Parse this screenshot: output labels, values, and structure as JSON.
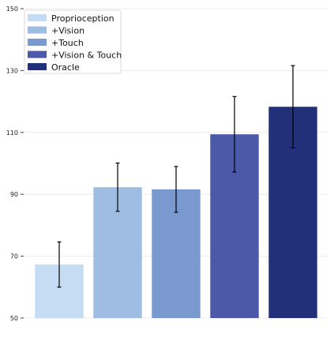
{
  "chart_data": {
    "type": "bar",
    "title": "",
    "xlabel": "",
    "ylabel": "",
    "ylim": [
      50,
      150
    ],
    "yticks": [
      50,
      70,
      90,
      110,
      130,
      150
    ],
    "grid": true,
    "legend_position": "top-left",
    "series": [
      {
        "name": "Proprioception",
        "value": 67.3,
        "error": 7.3,
        "color": "#c6dcf3"
      },
      {
        "name": "+Vision",
        "value": 92.3,
        "error": 7.8,
        "color": "#9fbde3"
      },
      {
        "name": "+Touch",
        "value": 91.6,
        "error": 7.4,
        "color": "#7a99cf"
      },
      {
        "name": "+Vision & Touch",
        "value": 109.4,
        "error": 12.2,
        "color": "#4c58a8"
      },
      {
        "name": "Oracle",
        "value": 118.3,
        "error": 13.3,
        "color": "#223079"
      }
    ]
  }
}
